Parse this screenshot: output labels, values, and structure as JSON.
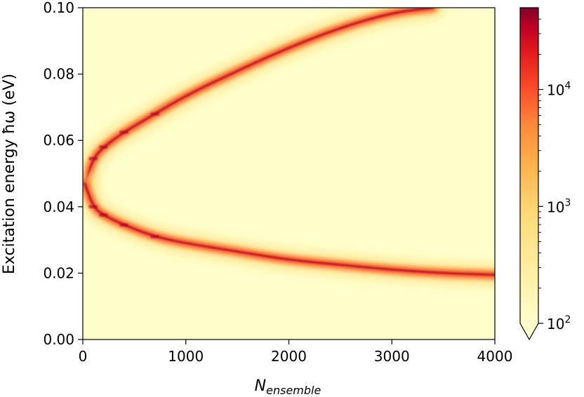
{
  "chart_data": {
    "type": "heatmap",
    "title": "",
    "xlabel": "N",
    "xlabel_subscript": "ensemble",
    "ylabel": "Excitation energy ħω (eV)",
    "xlim": [
      0,
      4000
    ],
    "ylim": [
      0.0,
      0.1
    ],
    "x_ticks": [
      0,
      1000,
      2000,
      3000,
      4000
    ],
    "x_tick_labels": [
      "0",
      "1000",
      "2000",
      "3000",
      "4000"
    ],
    "y_ticks": [
      0.0,
      0.02,
      0.04,
      0.06,
      0.08,
      0.1
    ],
    "y_tick_labels": [
      "0.00",
      "0.02",
      "0.04",
      "0.06",
      "0.08",
      "0.10"
    ],
    "grid": false,
    "colorbar": {
      "scale": "log",
      "colormap": "YlOrRd",
      "range": [
        100,
        50000
      ],
      "extend": "min",
      "ticks": [
        {
          "value": 100,
          "base": "10",
          "exp": "2"
        },
        {
          "value": 1000,
          "base": "10",
          "exp": "3"
        },
        {
          "value": 10000,
          "base": "10",
          "exp": "4"
        }
      ]
    },
    "branches": [
      {
        "name": "",
        "points": [
          [
            20,
            0.047
          ],
          [
            100,
            0.0545
          ],
          [
            200,
            0.058
          ],
          [
            400,
            0.0625
          ],
          [
            700,
            0.068
          ],
          [
            1000,
            0.0735
          ],
          [
            1500,
            0.081
          ],
          [
            2000,
            0.088
          ],
          [
            2500,
            0.094
          ],
          [
            3000,
            0.0985
          ],
          [
            3400,
            0.1
          ]
        ]
      },
      {
        "name": "",
        "points": [
          [
            20,
            0.047
          ],
          [
            100,
            0.04
          ],
          [
            200,
            0.0375
          ],
          [
            400,
            0.0345
          ],
          [
            700,
            0.031
          ],
          [
            1000,
            0.029
          ],
          [
            1500,
            0.0265
          ],
          [
            2000,
            0.024
          ],
          [
            2500,
            0.0225
          ],
          [
            3000,
            0.021
          ],
          [
            3500,
            0.02
          ],
          [
            4000,
            0.0195
          ]
        ]
      }
    ],
    "colors": {
      "background": "#ffffcc",
      "peak": "#b10026"
    }
  }
}
